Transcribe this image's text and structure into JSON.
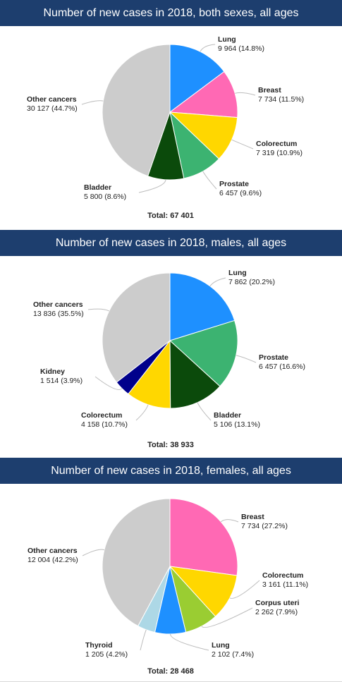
{
  "chart_data": [
    {
      "type": "pie",
      "title": "Number of new cases in 2018, both sexes, all ages",
      "total_label": "Total: 67 401",
      "slices": [
        {
          "name": "Lung",
          "value": 9964,
          "value_label": "9 964 (14.8%)",
          "color": "#1e90ff"
        },
        {
          "name": "Breast",
          "value": 7734,
          "value_label": "7 734 (11.5%)",
          "color": "#ff69b4"
        },
        {
          "name": "Colorectum",
          "value": 7319,
          "value_label": "7 319 (10.9%)",
          "color": "#ffd700"
        },
        {
          "name": "Prostate",
          "value": 6457,
          "value_label": "6 457 (9.6%)",
          "color": "#3cb371"
        },
        {
          "name": "Bladder",
          "value": 5800,
          "value_label": "5 800 (8.6%)",
          "color": "#0b4a0b"
        },
        {
          "name": "Other cancers",
          "value": 30127,
          "value_label": "30 127 (44.7%)",
          "color": "#cccccc"
        }
      ]
    },
    {
      "type": "pie",
      "title": "Number of new cases in 2018, males, all ages",
      "total_label": "Total: 38 933",
      "slices": [
        {
          "name": "Lung",
          "value": 7862,
          "value_label": "7 862 (20.2%)",
          "color": "#1e90ff"
        },
        {
          "name": "Prostate",
          "value": 6457,
          "value_label": "6 457 (16.6%)",
          "color": "#3cb371"
        },
        {
          "name": "Bladder",
          "value": 5106,
          "value_label": "5 106 (13.1%)",
          "color": "#0b4a0b"
        },
        {
          "name": "Colorectum",
          "value": 4158,
          "value_label": "4 158 (10.7%)",
          "color": "#ffd700"
        },
        {
          "name": "Kidney",
          "value": 1514,
          "value_label": "1 514 (3.9%)",
          "color": "#00008b"
        },
        {
          "name": "Other cancers",
          "value": 13836,
          "value_label": "13 836 (35.5%)",
          "color": "#cccccc"
        }
      ]
    },
    {
      "type": "pie",
      "title": "Number of new cases in 2018, females, all ages",
      "total_label": "Total: 28 468",
      "slices": [
        {
          "name": "Breast",
          "value": 7734,
          "value_label": "7 734 (27.2%)",
          "color": "#ff69b4"
        },
        {
          "name": "Colorectum",
          "value": 3161,
          "value_label": "3 161 (11.1%)",
          "color": "#ffd700"
        },
        {
          "name": "Corpus uteri",
          "value": 2262,
          "value_label": "2 262 (7.9%)",
          "color": "#9acd32"
        },
        {
          "name": "Lung",
          "value": 2102,
          "value_label": "2 102 (7.4%)",
          "color": "#1e90ff"
        },
        {
          "name": "Thyroid",
          "value": 1205,
          "value_label": "1 205 (4.2%)",
          "color": "#add8e6"
        },
        {
          "name": "Other cancers",
          "value": 12004,
          "value_label": "12 004 (42.2%)",
          "color": "#cccccc"
        }
      ]
    }
  ]
}
